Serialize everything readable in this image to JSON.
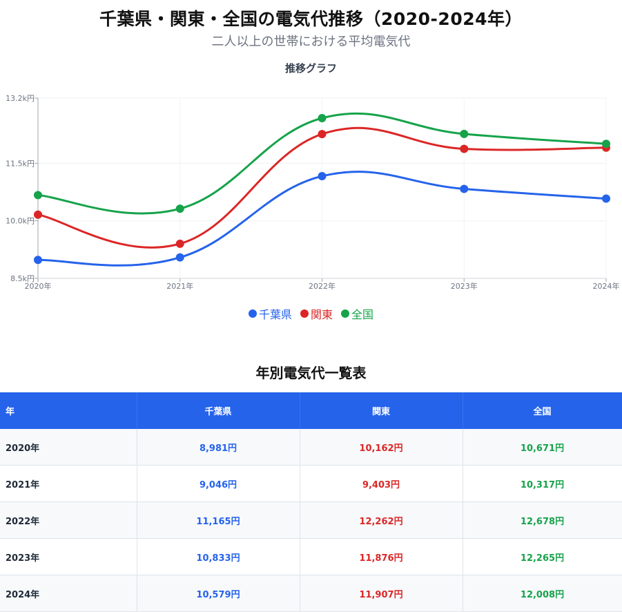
{
  "page": {
    "title": "千葉県・関東・全国の電気代推移（2020-2024年）",
    "subtitle": "二人以上の世帯における平均電気代",
    "chart_heading": "推移グラフ",
    "table_heading": "年別電気代一覧表"
  },
  "chart_data": {
    "type": "line",
    "title": "推移グラフ",
    "x": [
      "2020年",
      "2021年",
      "2022年",
      "2023年",
      "2024年"
    ],
    "y_ticks": [
      "13.2k円",
      "11.5k円",
      "10.0k円",
      "8.5k円"
    ],
    "y_tick_values": [
      13200,
      11500,
      10000,
      8500
    ],
    "ylim": [
      8500,
      13200
    ],
    "grid": true,
    "legend_position": "bottom",
    "series": [
      {
        "name": "千葉県",
        "color": "#2563eb",
        "values": [
          8981,
          9046,
          11165,
          10833,
          10579
        ]
      },
      {
        "name": "関東",
        "color": "#dc2626",
        "values": [
          10162,
          9403,
          12262,
          11876,
          11907
        ]
      },
      {
        "name": "全国",
        "color": "#16a34a",
        "values": [
          10671,
          10317,
          12678,
          12265,
          12008
        ]
      }
    ]
  },
  "legend": [
    {
      "label": "千葉県",
      "color": "#2563eb"
    },
    {
      "label": "関東",
      "color": "#dc2626"
    },
    {
      "label": "全国",
      "color": "#16a34a"
    }
  ],
  "table": {
    "headers": [
      "年",
      "千葉県",
      "関東",
      "全国"
    ],
    "rows": [
      [
        "2020年",
        "8,981円",
        "10,162円",
        "10,671円"
      ],
      [
        "2021年",
        "9,046円",
        "9,403円",
        "10,317円"
      ],
      [
        "2022年",
        "11,165円",
        "12,262円",
        "12,678円"
      ],
      [
        "2023年",
        "10,833円",
        "11,876円",
        "12,265円"
      ],
      [
        "2024年",
        "10,579円",
        "11,907円",
        "12,008円"
      ]
    ]
  }
}
